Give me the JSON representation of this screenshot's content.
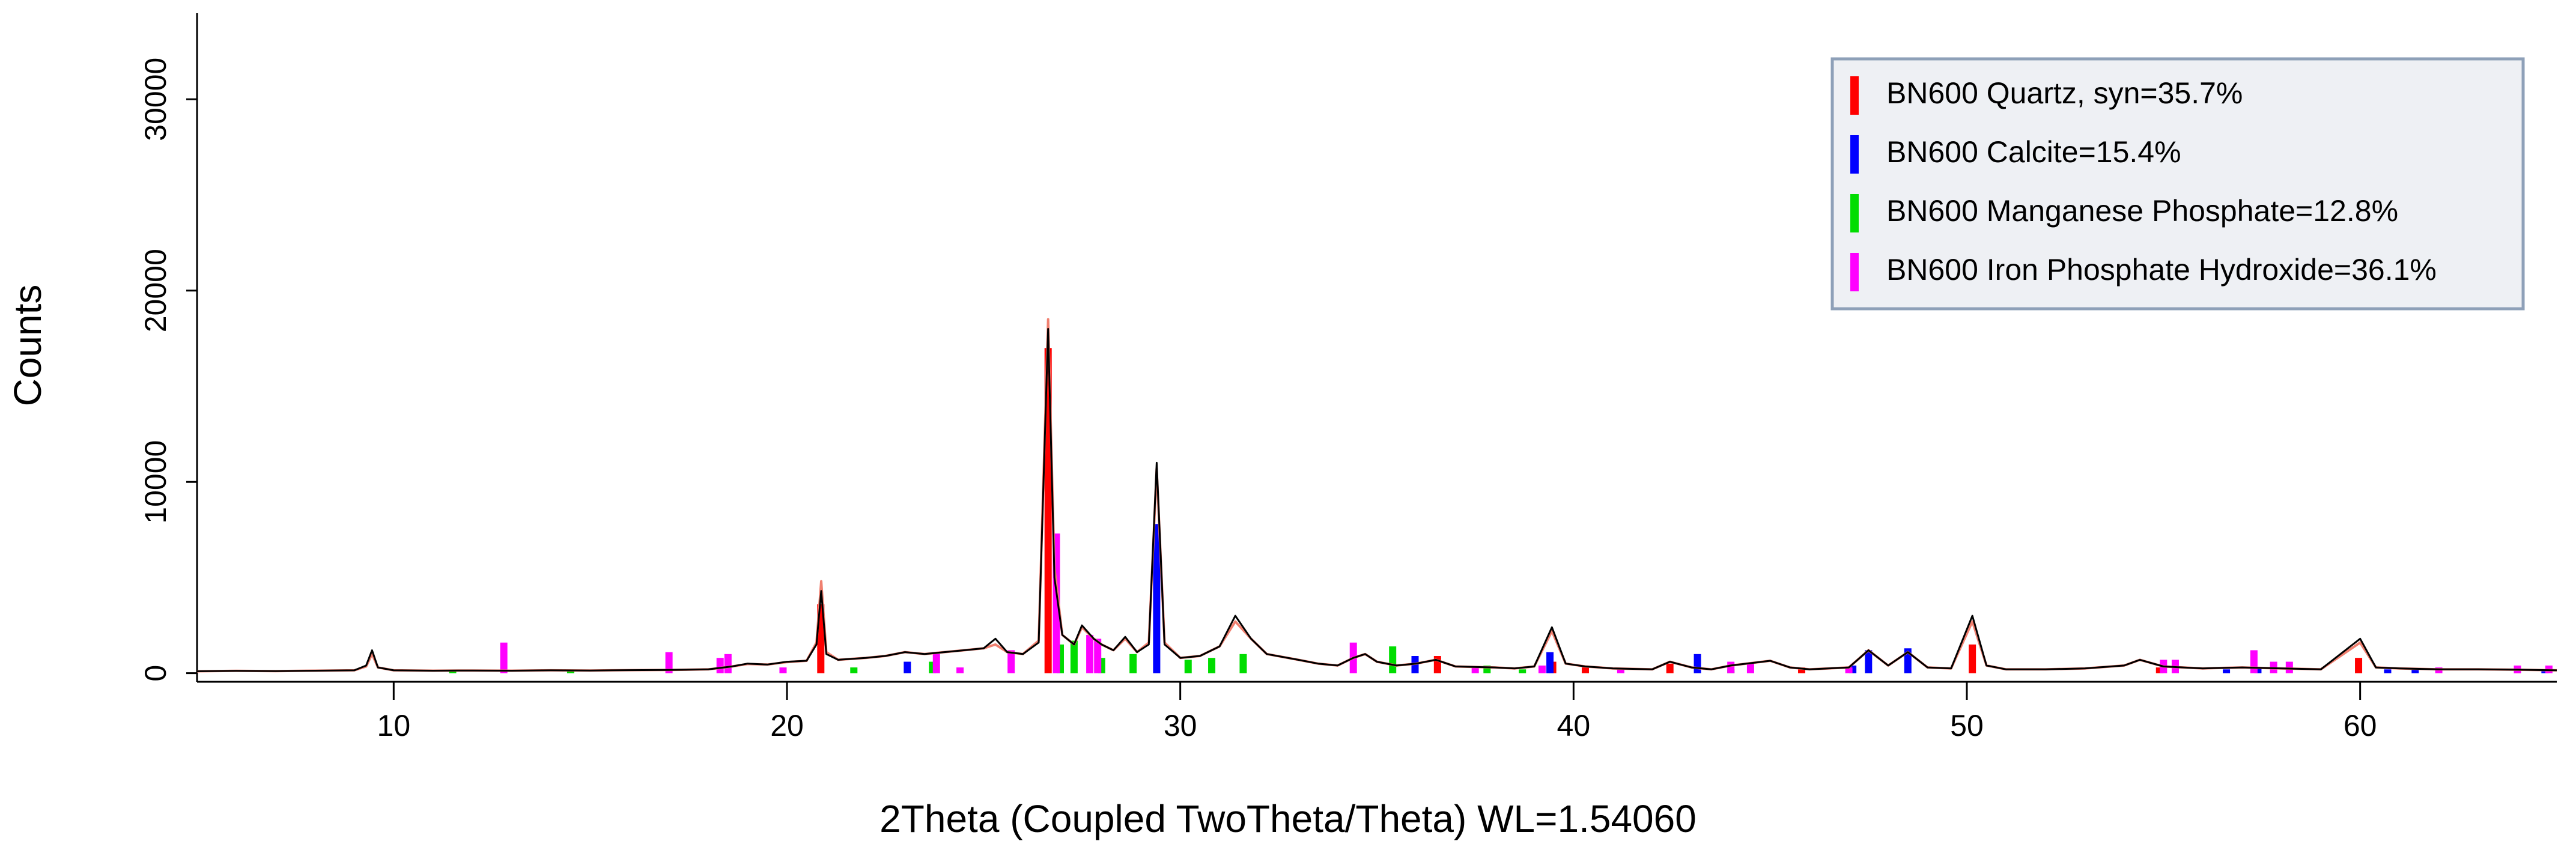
{
  "chart_data": {
    "type": "line",
    "xlabel": "2Theta (Coupled TwoTheta/Theta) WL=1.54060",
    "ylabel": "Counts",
    "xlim": [
      5,
      65
    ],
    "ylim": [
      -450,
      34500
    ],
    "xticks": [
      10,
      20,
      30,
      40,
      50,
      60
    ],
    "yticks": [
      0,
      10000,
      20000,
      30000
    ],
    "legend": "top-right",
    "x": [
      5,
      6,
      7,
      8,
      9,
      9.3,
      9.45,
      9.6,
      10,
      11,
      12,
      13,
      14,
      15,
      16,
      17,
      18,
      18.6,
      19,
      19.5,
      20,
      20.5,
      20.75,
      20.87,
      21,
      21.3,
      22,
      22.5,
      23,
      23.5,
      24,
      24.5,
      25,
      25.3,
      25.6,
      26,
      26.4,
      26.64,
      26.8,
      27,
      27.3,
      27.5,
      27.8,
      28,
      28.3,
      28.6,
      28.9,
      29.2,
      29.4,
      29.6,
      30,
      30.5,
      31,
      31.4,
      31.8,
      32.2,
      33,
      33.5,
      34,
      34.4,
      34.7,
      35,
      35.5,
      36,
      36.5,
      37,
      38,
      38.5,
      39,
      39.45,
      39.8,
      40.3,
      41,
      42,
      42.45,
      43,
      43.5,
      44,
      45,
      45.5,
      46,
      47,
      47.5,
      48,
      48.5,
      49,
      49.6,
      50.14,
      50.5,
      51,
      52,
      53,
      54,
      54.4,
      55,
      56,
      57,
      58,
      59,
      60,
      60.4,
      61,
      62,
      63,
      64,
      65
    ],
    "lines": [
      {
        "color": "#f08070",
        "values": [
          100,
          120,
          110,
          130,
          150,
          350,
          1000,
          300,
          150,
          130,
          140,
          130,
          150,
          140,
          160,
          170,
          200,
          350,
          480,
          450,
          580,
          650,
          1600,
          4800,
          1100,
          700,
          800,
          900,
          1100,
          1000,
          1100,
          1200,
          1300,
          1500,
          1100,
          1000,
          1700,
          18500,
          5500,
          2000,
          1500,
          2400,
          1800,
          1500,
          1200,
          1800,
          1100,
          1600,
          10700,
          1600,
          800,
          900,
          1400,
          2700,
          1800,
          1000,
          700,
          500,
          400,
          800,
          1000,
          600,
          400,
          500,
          700,
          350,
          300,
          250,
          350,
          2200,
          500,
          350,
          250,
          200,
          600,
          300,
          200,
          400,
          650,
          300,
          200,
          300,
          1200,
          400,
          1100,
          300,
          250,
          2700,
          400,
          200,
          200,
          250,
          400,
          700,
          350,
          250,
          300,
          250,
          200,
          1600,
          300,
          250,
          200,
          200,
          180,
          150
        ]
      },
      {
        "color": "#000000",
        "values": [
          100,
          120,
          110,
          130,
          150,
          400,
          1200,
          300,
          150,
          130,
          140,
          130,
          150,
          140,
          160,
          170,
          200,
          350,
          500,
          450,
          600,
          650,
          1500,
          4300,
          1000,
          700,
          800,
          900,
          1100,
          1000,
          1100,
          1200,
          1300,
          1800,
          1100,
          1000,
          1600,
          18000,
          5000,
          2000,
          1500,
          2500,
          1800,
          1500,
          1200,
          1900,
          1100,
          1500,
          11000,
          1500,
          800,
          900,
          1400,
          3000,
          1800,
          1000,
          700,
          500,
          400,
          800,
          1000,
          600,
          400,
          500,
          700,
          350,
          300,
          250,
          350,
          2400,
          500,
          350,
          250,
          200,
          600,
          300,
          200,
          400,
          650,
          300,
          200,
          300,
          1200,
          400,
          1100,
          300,
          250,
          3000,
          400,
          200,
          200,
          250,
          400,
          700,
          350,
          250,
          300,
          250,
          200,
          1800,
          300,
          250,
          200,
          200,
          180,
          150
        ]
      }
    ],
    "phases": [
      {
        "name": "BN600 Quartz, syn=35.7%",
        "color": "#ff0000",
        "x": [
          20.86,
          26.64,
          36.54,
          39.47,
          40.3,
          42.45,
          45.8,
          50.14,
          54.9,
          59.96,
          64
        ],
        "values": [
          3600,
          17000,
          900,
          600,
          300,
          500,
          300,
          1500,
          300,
          800,
          200
        ]
      },
      {
        "name": "BN600 Calcite=15.4%",
        "color": "#0000ff",
        "x": [
          23.06,
          29.4,
          35.97,
          39.4,
          43.15,
          47.1,
          47.5,
          48.5,
          56.6,
          57.4,
          60.7,
          61.4,
          64.7
        ],
        "values": [
          600,
          7800,
          900,
          1100,
          1000,
          400,
          1200,
          1300,
          200,
          300,
          200,
          200,
          200
        ]
      },
      {
        "name": "BN600 Manganese Phosphate=12.8%",
        "color": "#00dd00",
        "x": [
          11.5,
          14.5,
          21.7,
          23.7,
          26.95,
          27.3,
          28,
          28.8,
          30.2,
          30.8,
          31.6,
          35.4,
          37.8,
          38.7,
          44
        ],
        "values": [
          100,
          100,
          300,
          600,
          1500,
          1700,
          800,
          1000,
          700,
          800,
          1000,
          1400,
          400,
          200,
          200
        ]
      },
      {
        "name": "BN600 Iron Phosphate Hydroxide=36.1%",
        "color": "#ff00ff",
        "x": [
          12.8,
          17,
          18.3,
          18.5,
          19.9,
          23.8,
          24.4,
          25.7,
          26.85,
          27.7,
          27.9,
          34.4,
          37.5,
          39.2,
          41.2,
          44,
          44.5,
          47,
          55,
          55.3,
          57.3,
          57.8,
          58.2,
          62,
          64,
          64.8
        ],
        "values": [
          1600,
          1100,
          800,
          1000,
          300,
          1000,
          300,
          1200,
          7300,
          2000,
          1800,
          1600,
          300,
          400,
          200,
          600,
          500,
          300,
          700,
          700,
          1200,
          600,
          600,
          300,
          400,
          400
        ]
      }
    ]
  }
}
